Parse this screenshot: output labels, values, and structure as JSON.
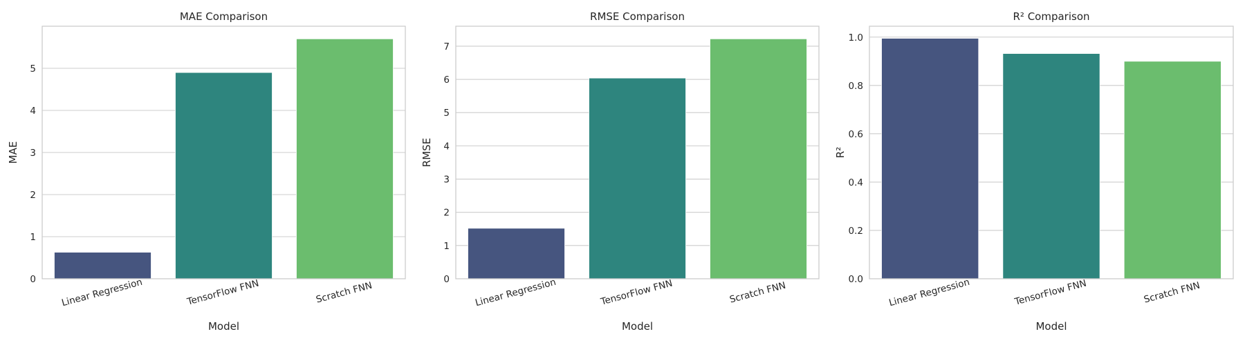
{
  "chart_data": [
    {
      "type": "bar",
      "title": "MAE Comparison",
      "xlabel": "Model",
      "ylabel": "MAE",
      "categories": [
        "Linear Regression",
        "TensorFlow FNN",
        "Scratch FNN"
      ],
      "values": [
        0.63,
        4.9,
        5.7
      ],
      "ylim": [
        0,
        6.0
      ],
      "yticks": [
        0,
        1,
        2,
        3,
        4,
        5
      ],
      "tick_decimals": 0,
      "grid": true,
      "colors": [
        "#46557f",
        "#2e857e",
        "#6bbd6e"
      ]
    },
    {
      "type": "bar",
      "title": "RMSE Comparison",
      "xlabel": "Model",
      "ylabel": "RMSE",
      "categories": [
        "Linear Regression",
        "TensorFlow FNN",
        "Scratch FNN"
      ],
      "values": [
        1.52,
        6.04,
        7.22
      ],
      "ylim": [
        0,
        7.6
      ],
      "yticks": [
        0,
        1,
        2,
        3,
        4,
        5,
        6,
        7
      ],
      "tick_decimals": 0,
      "grid": true,
      "colors": [
        "#46557f",
        "#2e857e",
        "#6bbd6e"
      ]
    },
    {
      "type": "bar",
      "title": "R² Comparison",
      "xlabel": "Model",
      "ylabel": "R²",
      "categories": [
        "Linear Regression",
        "TensorFlow FNN",
        "Scratch FNN"
      ],
      "values": [
        0.995,
        0.932,
        0.9
      ],
      "ylim": [
        0,
        1.045
      ],
      "yticks": [
        0.0,
        0.2,
        0.4,
        0.6,
        0.8,
        1.0
      ],
      "tick_decimals": 1,
      "grid": true,
      "colors": [
        "#46557f",
        "#2e857e",
        "#6bbd6e"
      ]
    }
  ]
}
